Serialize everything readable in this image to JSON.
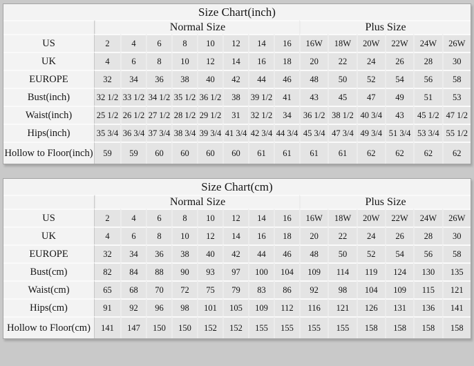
{
  "colors": {
    "page_bg": "#c9c9c9",
    "panel_bg": "#f3f3f3",
    "cell_bg": "#e4e4e4",
    "grid_horizontal": "#fafafa",
    "grid_vertical": "#ececec",
    "table_border": "#a3a3a3",
    "text": "#141414"
  },
  "tables": [
    {
      "id": "inch",
      "title": "Size Chart(inch)",
      "groups": [
        {
          "label": "Normal Size",
          "span": 8
        },
        {
          "label": "Plus Size",
          "span": 6
        }
      ],
      "rows": [
        {
          "label": "US",
          "values": [
            "2",
            "4",
            "6",
            "8",
            "10",
            "12",
            "14",
            "16",
            "16W",
            "18W",
            "20W",
            "22W",
            "24W",
            "26W"
          ]
        },
        {
          "label": "UK",
          "values": [
            "4",
            "6",
            "8",
            "10",
            "12",
            "14",
            "16",
            "18",
            "20",
            "22",
            "24",
            "26",
            "28",
            "30"
          ]
        },
        {
          "label": "EUROPE",
          "values": [
            "32",
            "34",
            "36",
            "38",
            "40",
            "42",
            "44",
            "46",
            "48",
            "50",
            "52",
            "54",
            "56",
            "58"
          ]
        },
        {
          "label": "Bust(inch)",
          "values": [
            "32 1/2",
            "33 1/2",
            "34 1/2",
            "35 1/2",
            "36 1/2",
            "38",
            "39 1/2",
            "41",
            "43",
            "45",
            "47",
            "49",
            "51",
            "53"
          ]
        },
        {
          "label": "Waist(inch)",
          "values": [
            "25 1/2",
            "26 1/2",
            "27 1/2",
            "28 1/2",
            "29 1/2",
            "31",
            "32 1/2",
            "34",
            "36 1/2",
            "38 1/2",
            "40 3/4",
            "43",
            "45 1/2",
            "47 1/2"
          ]
        },
        {
          "label": "Hips(inch)",
          "values": [
            "35 3/4",
            "36 3/4",
            "37 3/4",
            "38 3/4",
            "39 3/4",
            "41 3/4",
            "42 3/4",
            "44 3/4",
            "45 3/4",
            "47 3/4",
            "49 3/4",
            "51 3/4",
            "53 3/4",
            "55 1/2"
          ]
        },
        {
          "label": "Hollow to Floor(inch)",
          "values": [
            "59",
            "59",
            "60",
            "60",
            "60",
            "60",
            "61",
            "61",
            "61",
            "61",
            "62",
            "62",
            "62",
            "62"
          ]
        }
      ]
    },
    {
      "id": "cm",
      "title": "Size Chart(cm)",
      "groups": [
        {
          "label": "Normal Size",
          "span": 8
        },
        {
          "label": "Plus Size",
          "span": 6
        }
      ],
      "rows": [
        {
          "label": "US",
          "values": [
            "2",
            "4",
            "6",
            "8",
            "10",
            "12",
            "14",
            "16",
            "16W",
            "18W",
            "20W",
            "22W",
            "24W",
            "26W"
          ]
        },
        {
          "label": "UK",
          "values": [
            "4",
            "6",
            "8",
            "10",
            "12",
            "14",
            "16",
            "18",
            "20",
            "22",
            "24",
            "26",
            "28",
            "30"
          ]
        },
        {
          "label": "EUROPE",
          "values": [
            "32",
            "34",
            "36",
            "38",
            "40",
            "42",
            "44",
            "46",
            "48",
            "50",
            "52",
            "54",
            "56",
            "58"
          ]
        },
        {
          "label": "Bust(cm)",
          "values": [
            "82",
            "84",
            "88",
            "90",
            "93",
            "97",
            "100",
            "104",
            "109",
            "114",
            "119",
            "124",
            "130",
            "135"
          ]
        },
        {
          "label": "Waist(cm)",
          "values": [
            "65",
            "68",
            "70",
            "72",
            "75",
            "79",
            "83",
            "86",
            "92",
            "98",
            "104",
            "109",
            "115",
            "121"
          ]
        },
        {
          "label": "Hips(cm)",
          "values": [
            "91",
            "92",
            "96",
            "98",
            "101",
            "105",
            "109",
            "112",
            "116",
            "121",
            "126",
            "131",
            "136",
            "141"
          ]
        },
        {
          "label": "Hollow to Floor(cm)",
          "values": [
            "141",
            "147",
            "150",
            "150",
            "152",
            "152",
            "155",
            "155",
            "155",
            "155",
            "158",
            "158",
            "158",
            "158"
          ]
        }
      ]
    }
  ]
}
